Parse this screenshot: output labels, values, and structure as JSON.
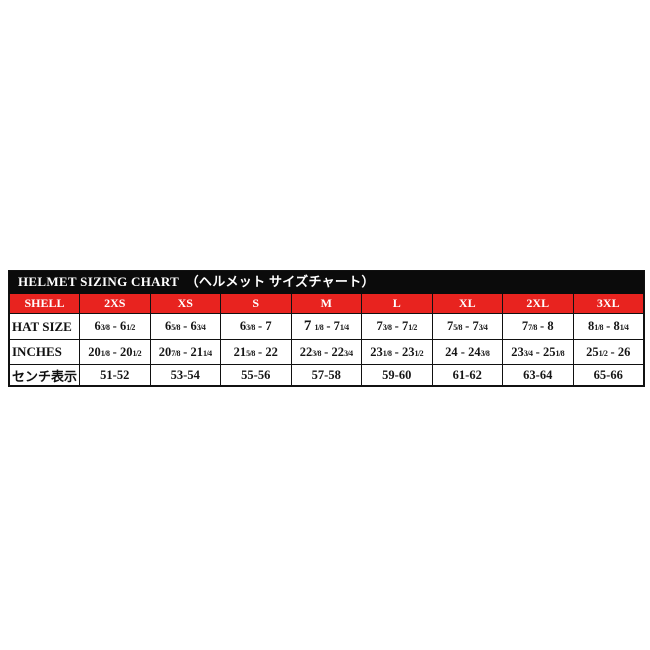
{
  "colors": {
    "header_red": "#e8231f",
    "title_black": "#0b0b0b",
    "text": "#151515",
    "background": "#ffffff"
  },
  "table": {
    "title": "HELMET SIZING CHART　（ヘルメット サイズチャート）",
    "header": [
      "SHELL",
      "2XS",
      "XS",
      "S",
      "M",
      "L",
      "XL",
      "2XL",
      "3XL"
    ],
    "rows": [
      {
        "label": "HAT SIZE",
        "values": [
          "6{3/8} - 6{1/2}",
          "6{5/8} - 6{3/4}",
          "6{3/8} - 7",
          "[b]7[/b] {1/8} - 7{1/4}",
          "7{3/8} - 7{1/2}",
          "7{5/8} - 7{3/4}",
          "7{7/8} - 8",
          "8{1/8} - 8{1/4}"
        ]
      },
      {
        "label": "INCHES",
        "values": [
          "20{1/8} - 20{1/2}",
          "20{7/8} - 21{1/4}",
          "21{5/8} - 22",
          "22{3/8} - 22{3/4}",
          "23{1/8} - 23{1/2}",
          "24 - 24{3/8}",
          "23{3/4} - 25{1/8}",
          "25{1/2} - 26"
        ]
      },
      {
        "label": "センチ表示",
        "values": [
          "51-52",
          "53-54",
          "55-56",
          "57-58",
          "59-60",
          "61-62",
          "63-64",
          "65-66"
        ]
      }
    ]
  }
}
